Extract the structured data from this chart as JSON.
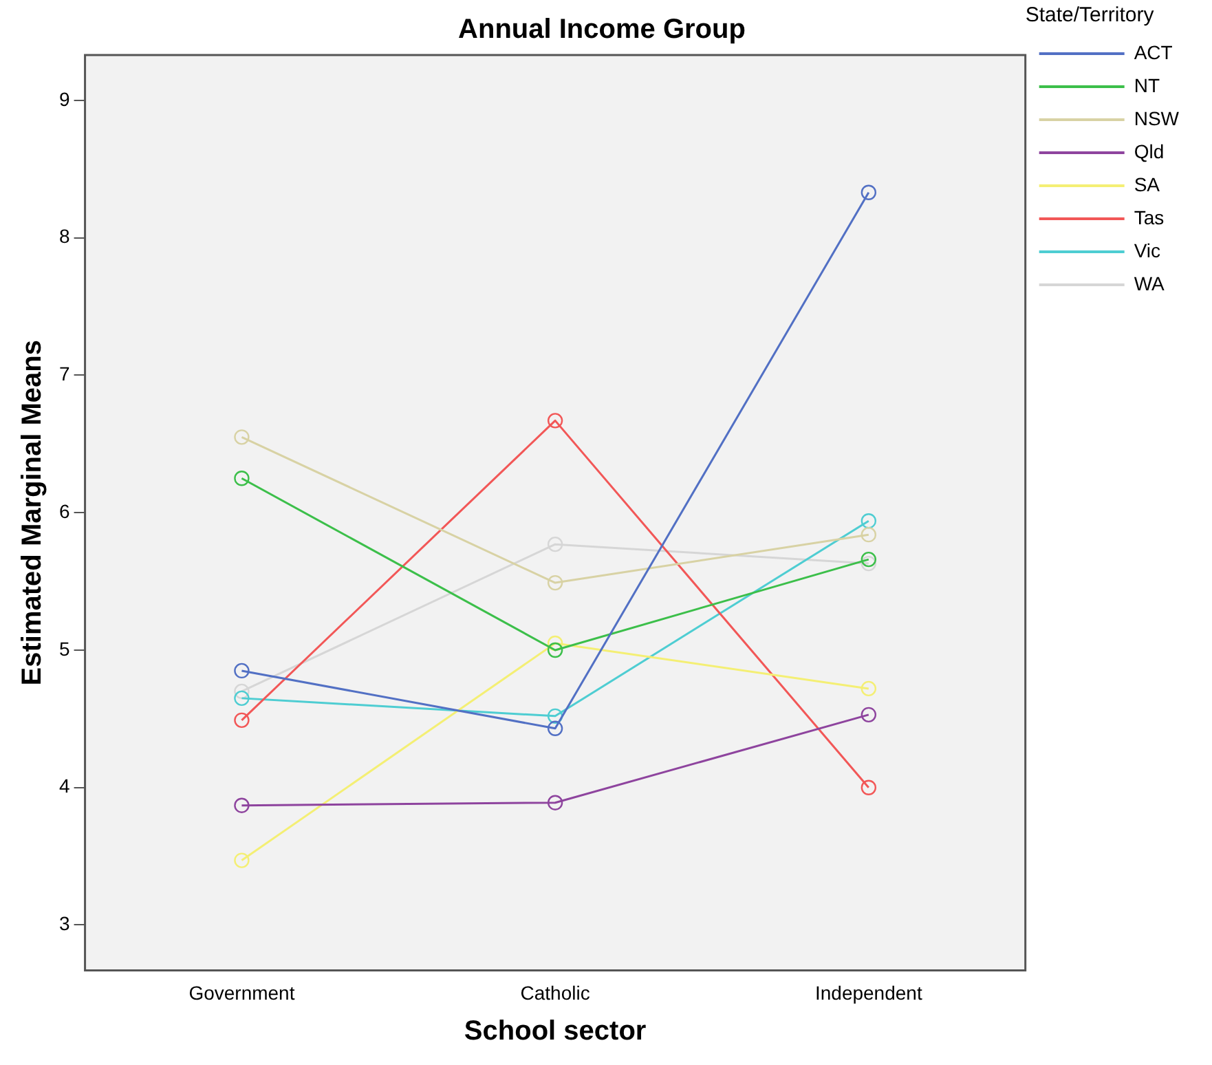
{
  "chart_data": {
    "type": "line",
    "title": "Annual Income Group",
    "xlabel": "School sector",
    "ylabel": "Estimated Marginal Means",
    "categories": [
      "Government",
      "Catholic",
      "Independent"
    ],
    "series": [
      {
        "name": "ACT",
        "color": "#5270c4",
        "values": [
          4.85,
          4.43,
          8.33
        ]
      },
      {
        "name": "NT",
        "color": "#3cbf4a",
        "values": [
          6.25,
          5.0,
          5.66
        ]
      },
      {
        "name": "NSW",
        "color": "#d8d2a4",
        "values": [
          6.55,
          5.49,
          5.84
        ]
      },
      {
        "name": "Qld",
        "color": "#8e449e",
        "values": [
          3.87,
          3.89,
          4.53
        ]
      },
      {
        "name": "SA",
        "color": "#f4ef74",
        "values": [
          3.47,
          5.05,
          4.72
        ]
      },
      {
        "name": "Tas",
        "color": "#f25757",
        "values": [
          4.49,
          6.67,
          4.0
        ]
      },
      {
        "name": "Vic",
        "color": "#4ecdd2",
        "values": [
          4.65,
          4.52,
          5.94
        ]
      },
      {
        "name": "WA",
        "color": "#d6d6d6",
        "values": [
          4.7,
          5.77,
          5.63
        ]
      }
    ],
    "ylim": [
      2.67,
      9.33
    ],
    "yticks": [
      3,
      4,
      5,
      6,
      7,
      8,
      9
    ],
    "grid": false,
    "legend": "right",
    "legend_title": "State/Territory",
    "marker": "circle",
    "line_style": "solid"
  }
}
